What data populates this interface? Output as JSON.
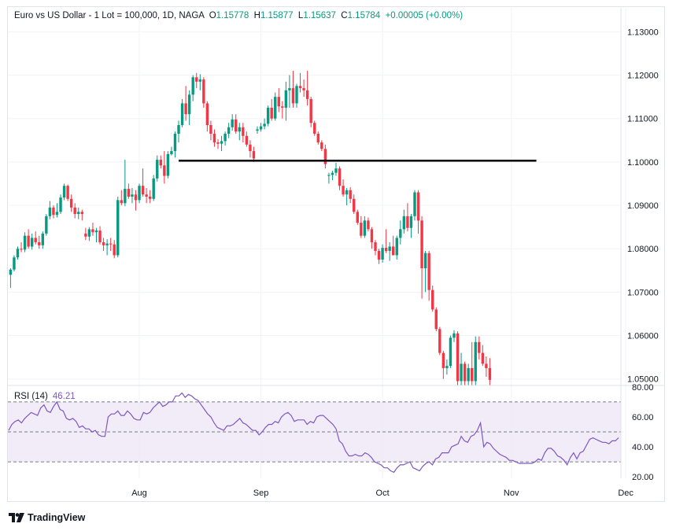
{
  "header": {
    "title": "Euro vs US Dollar - 1 Lot = 100,000, 1D, NAGA",
    "o_label": "O",
    "o_value": "1.15778",
    "h_label": "H",
    "h_value": "1.15877",
    "l_label": "L",
    "l_value": "1.15637",
    "c_label": "C",
    "c_value": "1.15784",
    "change": "+0.00005 (+0.00%)"
  },
  "rsi": {
    "label": "RSI (14)",
    "value": "46.21"
  },
  "logo_text": "TradingView",
  "colors": {
    "up": "#089981",
    "down": "#f23645",
    "rsi_line": "#7e57c2",
    "rsi_band": "#ede7f6",
    "level_line": "#000000"
  },
  "chart_data": [
    {
      "type": "candlestick",
      "title": "Euro vs US Dollar - 1 Lot = 100,000, 1D, NAGA",
      "ylim": [
        1.0485,
        1.1355
      ],
      "y_ticks": [
        "1.13000",
        "1.12000",
        "1.11000",
        "1.10000",
        "1.09000",
        "1.08000",
        "1.07000",
        "1.06000",
        "1.05000"
      ],
      "x_ticks": [
        {
          "label": "Aug",
          "index": 36
        },
        {
          "label": "Sep",
          "index": 70
        },
        {
          "label": "Oct",
          "index": 104
        },
        {
          "label": "Nov",
          "index": 140
        },
        {
          "label": "Dec",
          "index": 172
        }
      ],
      "horizontal_level": {
        "value": 1.1003,
        "from_index": 47,
        "to_index": 147
      },
      "candles": [
        [
          1.074,
          1.0755,
          1.071,
          1.0752
        ],
        [
          1.0752,
          1.0785,
          1.0748,
          1.078
        ],
        [
          1.078,
          1.0805,
          1.0775,
          1.08
        ],
        [
          1.08,
          1.0815,
          1.0792,
          1.0798
        ],
        [
          1.0798,
          1.0838,
          1.0792,
          1.083
        ],
        [
          1.083,
          1.0845,
          1.08,
          1.0805
        ],
        [
          1.0805,
          1.0835,
          1.0798,
          1.0825
        ],
        [
          1.0825,
          1.084,
          1.081,
          1.0815
        ],
        [
          1.0815,
          1.083,
          1.08,
          1.0808
        ],
        [
          1.0808,
          1.084,
          1.08,
          1.0835
        ],
        [
          1.0835,
          1.088,
          1.083,
          1.0875
        ],
        [
          1.0875,
          1.091,
          1.0868,
          1.0895
        ],
        [
          1.0895,
          1.09,
          1.087,
          1.0878
        ],
        [
          1.0878,
          1.0905,
          1.0872,
          1.0885
        ],
        [
          1.0885,
          1.0925,
          1.088,
          1.0918
        ],
        [
          1.0918,
          1.095,
          1.0912,
          1.0945
        ],
        [
          1.0945,
          1.0948,
          1.091,
          1.0915
        ],
        [
          1.0915,
          1.0925,
          1.0885,
          1.0895
        ],
        [
          1.0895,
          1.0905,
          1.087,
          1.088
        ],
        [
          1.088,
          1.0895,
          1.0868,
          1.0885
        ],
        [
          1.0885,
          1.089,
          1.0865,
          1.088
        ],
        [
          1.0835,
          1.0848,
          1.082,
          1.0828
        ],
        [
          1.0828,
          1.085,
          1.0818,
          1.0845
        ],
        [
          1.0845,
          1.086,
          1.083,
          1.0838
        ],
        [
          1.0838,
          1.0848,
          1.0815,
          1.0842
        ],
        [
          1.0842,
          1.0852,
          1.081,
          1.0815
        ],
        [
          1.0815,
          1.0825,
          1.0795,
          1.0808
        ],
        [
          1.0808,
          1.0822,
          1.0785,
          1.0812
        ],
        [
          1.0812,
          1.0825,
          1.0795,
          1.081
        ],
        [
          1.081,
          1.082,
          1.0778,
          1.0785
        ],
        [
          1.0785,
          1.092,
          1.078,
          1.0912
        ],
        [
          1.0912,
          1.0935,
          1.09,
          1.0905
        ],
        [
          1.0905,
          1.1005,
          1.0898,
          1.0938
        ],
        [
          1.0938,
          1.095,
          1.0915,
          1.092
        ],
        [
          1.092,
          1.094,
          1.0905,
          1.0925
        ],
        [
          1.0925,
          1.0935,
          1.0888,
          1.0912
        ],
        [
          1.0912,
          1.095,
          1.0905,
          1.0945
        ],
        [
          1.0945,
          1.0985,
          1.092,
          1.0925
        ],
        [
          1.0925,
          1.094,
          1.0905,
          1.092
        ],
        [
          1.092,
          1.0935,
          1.0905,
          1.0915
        ],
        [
          1.0915,
          1.097,
          1.091,
          1.0962
        ],
        [
          1.0962,
          1.1015,
          1.0955,
          1.1005
        ],
        [
          1.1005,
          1.1015,
          1.0985,
          1.0992
        ],
        [
          1.0992,
          1.1025,
          1.095,
          1.0968
        ],
        [
          1.0968,
          1.1025,
          1.0962,
          1.1018
        ],
        [
          1.1018,
          1.1035,
          1.1015,
          1.1025
        ],
        [
          1.1025,
          1.107,
          1.101,
          1.1065
        ],
        [
          1.1065,
          1.1095,
          1.1045,
          1.1085
        ],
        [
          1.1085,
          1.1145,
          1.108,
          1.1135
        ],
        [
          1.1135,
          1.1175,
          1.1095,
          1.111
        ],
        [
          1.111,
          1.1165,
          1.1085,
          1.1155
        ],
        [
          1.1155,
          1.12,
          1.114,
          1.1195
        ],
        [
          1.1195,
          1.1205,
          1.117,
          1.1185
        ],
        [
          1.1185,
          1.1202,
          1.1165,
          1.119
        ],
        [
          1.119,
          1.1195,
          1.1125,
          1.1135
        ],
        [
          1.1135,
          1.114,
          1.107,
          1.1085
        ],
        [
          1.1085,
          1.1095,
          1.105,
          1.1065
        ],
        [
          1.1065,
          1.1075,
          1.1035,
          1.1045
        ],
        [
          1.1045,
          1.1052,
          1.103,
          1.1042
        ],
        [
          1.1042,
          1.106,
          1.1025,
          1.1048
        ],
        [
          1.1048,
          1.107,
          1.1038,
          1.1065
        ],
        [
          1.1065,
          1.109,
          1.1055,
          1.108
        ],
        [
          1.108,
          1.111,
          1.1072,
          1.1098
        ],
        [
          1.1098,
          1.111,
          1.1065,
          1.107
        ],
        [
          1.107,
          1.109,
          1.105,
          1.108
        ],
        [
          1.108,
          1.109,
          1.1045,
          1.106
        ],
        [
          1.106,
          1.107,
          1.1035,
          1.104
        ],
        [
          1.104,
          1.105,
          1.101,
          1.1025
        ],
        [
          1.1025,
          1.1035,
          1.1,
          1.1008
        ],
        [
          1.1072,
          1.1082,
          1.1065,
          1.1075
        ],
        [
          1.1075,
          1.109,
          1.107,
          1.1082
        ],
        [
          1.1082,
          1.11,
          1.1075,
          1.1088
        ],
        [
          1.1088,
          1.113,
          1.1082,
          1.1125
        ],
        [
          1.1125,
          1.1145,
          1.1095,
          1.11
        ],
        [
          1.11,
          1.116,
          1.1095,
          1.115
        ],
        [
          1.115,
          1.117,
          1.1115,
          1.1128
        ],
        [
          1.1128,
          1.114,
          1.11,
          1.1125
        ],
        [
          1.1125,
          1.1185,
          1.1095,
          1.1165
        ],
        [
          1.1165,
          1.12,
          1.1125,
          1.117
        ],
        [
          1.117,
          1.121,
          1.1125,
          1.1135
        ],
        [
          1.1135,
          1.118,
          1.1125,
          1.1175
        ],
        [
          1.1175,
          1.1205,
          1.116,
          1.117
        ],
        [
          1.117,
          1.119,
          1.115,
          1.1165
        ],
        [
          1.1165,
          1.121,
          1.113,
          1.1145
        ],
        [
          1.1145,
          1.115,
          1.108,
          1.109
        ],
        [
          1.109,
          1.1095,
          1.106,
          1.1065
        ],
        [
          1.1065,
          1.107,
          1.104,
          1.1045
        ],
        [
          1.1045,
          1.105,
          1.1025,
          1.103
        ],
        [
          1.103,
          1.104,
          1.0985,
          1.0995
        ],
        [
          1.0968,
          1.0975,
          1.095,
          1.097
        ],
        [
          1.097,
          1.098,
          1.0958,
          1.0975
        ],
        [
          1.0975,
          1.0998,
          1.0968,
          1.0985
        ],
        [
          1.0985,
          1.099,
          1.0935,
          1.0945
        ],
        [
          1.0945,
          1.096,
          1.092,
          1.0925
        ],
        [
          1.0925,
          1.094,
          1.09,
          1.0935
        ],
        [
          1.0935,
          1.0942,
          1.0905,
          1.0915
        ],
        [
          1.0915,
          1.0925,
          1.088,
          1.0885
        ],
        [
          1.0885,
          1.089,
          1.0855,
          1.086
        ],
        [
          1.086,
          1.0875,
          1.0825,
          1.083
        ],
        [
          1.083,
          1.0875,
          1.0825,
          1.0865
        ],
        [
          1.0865,
          1.0872,
          1.084,
          1.0845
        ],
        [
          1.0845,
          1.085,
          1.08,
          1.0815
        ],
        [
          1.0815,
          1.082,
          1.0785,
          1.0795
        ],
        [
          1.0795,
          1.08,
          1.0765,
          1.0775
        ],
        [
          1.0775,
          1.081,
          1.0768,
          1.0802
        ],
        [
          1.0802,
          1.0845,
          1.079,
          1.0795
        ],
        [
          1.0795,
          1.0815,
          1.0772,
          1.0805
        ],
        [
          1.0805,
          1.083,
          1.0785,
          1.0785
        ],
        [
          1.0785,
          1.083,
          1.0775,
          1.0825
        ],
        [
          1.0825,
          1.0865,
          1.081,
          1.0845
        ],
        [
          1.0845,
          1.089,
          1.0835,
          1.0875
        ],
        [
          1.0875,
          1.0905,
          1.084,
          1.0848
        ],
        [
          1.0848,
          1.088,
          1.0825,
          1.0875
        ],
        [
          1.0875,
          1.0935,
          1.0865,
          1.093
        ],
        [
          1.093,
          1.0935,
          1.0835,
          1.0865
        ],
        [
          1.0865,
          1.0875,
          1.0685,
          1.0755
        ],
        [
          1.0755,
          1.0795,
          1.07,
          1.079
        ],
        [
          1.079,
          1.0795,
          1.068,
          1.0705
        ],
        [
          1.0705,
          1.0715,
          1.0655,
          1.066
        ],
        [
          1.066,
          1.0665,
          1.061,
          1.0615
        ],
        [
          1.0615,
          1.062,
          1.0555,
          1.056
        ],
        [
          1.056,
          1.0565,
          1.05,
          1.0525
        ],
        [
          1.0525,
          1.0545,
          1.051,
          1.053
        ],
        [
          1.053,
          1.06,
          1.0525,
          1.0595
        ],
        [
          1.0595,
          1.0612,
          1.0585,
          1.0605
        ],
        [
          1.0605,
          1.061,
          1.0485,
          1.0495
        ],
        [
          1.0495,
          1.056,
          1.0485,
          1.0535
        ],
        [
          1.0535,
          1.054,
          1.0485,
          1.0495
        ],
        [
          1.0495,
          1.0535,
          1.0485,
          1.0525
        ],
        [
          1.0525,
          1.0585,
          1.0485,
          1.0495
        ],
        [
          1.0495,
          1.0598,
          1.0485,
          1.0585
        ],
        [
          1.0585,
          1.0598,
          1.0545,
          1.056
        ],
        [
          1.056,
          1.0578,
          1.053,
          1.0535
        ],
        [
          1.0535,
          1.0552,
          1.0505,
          1.0525
        ],
        [
          1.0525,
          1.0548,
          1.0485,
          1.0498
        ]
      ]
    },
    {
      "type": "line",
      "title": "RSI (14)",
      "ylim": [
        19,
        81
      ],
      "y_ticks": [
        "80.00",
        "60.00",
        "40.00",
        "20.00"
      ],
      "bands": {
        "upper": 70,
        "middle": 50,
        "lower": 30
      },
      "values": [
        51,
        55,
        57,
        58,
        56,
        59,
        61,
        63,
        62,
        61,
        66,
        68,
        64,
        63,
        67,
        70,
        65,
        64,
        59,
        58,
        59,
        57,
        53,
        54,
        52,
        52,
        50,
        51,
        48,
        47,
        47,
        60,
        62,
        62,
        64,
        61,
        61,
        64,
        62,
        59,
        58,
        58,
        63,
        62,
        63,
        66,
        68,
        70,
        67,
        68,
        70,
        70,
        74,
        74,
        76,
        73,
        75,
        74,
        72,
        71,
        68,
        65,
        62,
        60,
        56,
        53,
        52,
        51,
        54,
        54,
        55,
        57,
        59,
        56,
        55,
        53,
        51,
        51,
        48,
        50,
        53,
        55,
        55,
        57,
        56,
        60,
        62,
        63,
        61,
        57,
        58,
        58,
        58,
        55,
        57,
        56,
        60,
        61,
        61,
        59,
        57,
        55,
        52,
        44,
        42,
        37,
        34,
        34,
        35,
        34,
        34,
        36,
        35,
        33,
        30,
        29,
        28,
        26,
        26,
        24,
        23,
        26,
        28,
        28,
        29,
        30,
        26,
        25,
        24,
        27,
        29,
        30,
        28,
        32,
        33,
        36,
        36,
        36,
        40,
        41,
        42,
        47,
        44,
        43,
        47,
        48,
        51,
        56,
        40,
        43,
        42,
        39,
        37,
        35,
        34,
        33,
        31,
        31,
        30,
        29,
        29,
        29,
        29,
        29,
        30,
        32,
        31,
        36,
        39,
        39,
        37,
        34,
        33,
        31,
        28,
        33,
        36,
        32,
        36,
        37,
        41,
        45,
        46,
        45,
        44,
        43,
        43,
        42,
        44,
        44,
        46
      ]
    }
  ]
}
